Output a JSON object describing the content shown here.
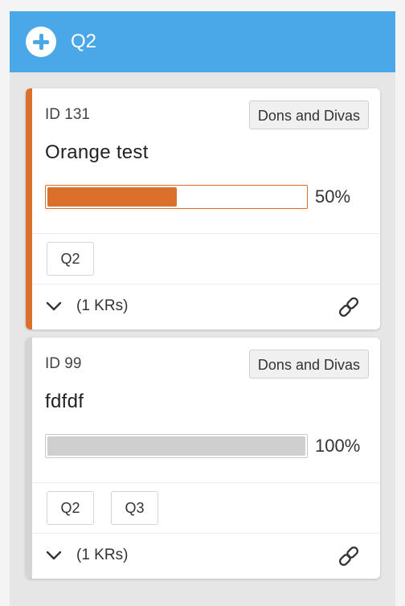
{
  "column": {
    "title": "Q2",
    "header_color": "#4aa8e8"
  },
  "cards": [
    {
      "id_label": "ID 131",
      "team": "Dons and Divas",
      "title": "Orange test",
      "progress": 0.5,
      "progress_label": "50%",
      "accent_color": "#d9702c",
      "tags": [
        "Q2"
      ],
      "krs_label": "(1 KRs)"
    },
    {
      "id_label": "ID 99",
      "team": "Dons and Divas",
      "title": "fdfdf",
      "progress": 1.0,
      "progress_label": "100%",
      "accent_color": "#d4d4d4",
      "tags": [
        "Q2",
        "Q3"
      ],
      "krs_label": "(1 KRs)"
    }
  ],
  "icons": {
    "add": "plus-circle-icon",
    "expand": "chevron-down-icon",
    "link": "link-icon"
  }
}
